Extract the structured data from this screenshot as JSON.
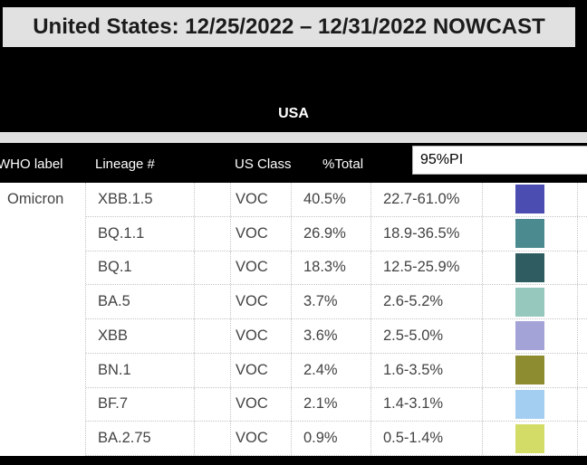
{
  "banner": {
    "title": "United States: 12/25/2022 – 12/31/2022 NOWCAST",
    "region": "USA"
  },
  "header": {
    "who": "WHO label",
    "lineage": "Lineage #",
    "us_class": "US Class",
    "pct_total": "%Total",
    "pi_box": "95%PI"
  },
  "table": {
    "who_label": "Omicron",
    "rows": [
      {
        "lineage": "XBB.1.5",
        "us_class": "VOC",
        "pct_total": "40.5%",
        "pi95": "22.7-61.0%",
        "color": "#4c4db0"
      },
      {
        "lineage": "BQ.1.1",
        "us_class": "VOC",
        "pct_total": "26.9%",
        "pi95": "18.9-36.5%",
        "color": "#4b8b8f"
      },
      {
        "lineage": "BQ.1",
        "us_class": "VOC",
        "pct_total": "18.3%",
        "pi95": "12.5-25.9%",
        "color": "#2e5c60"
      },
      {
        "lineage": "BA.5",
        "us_class": "VOC",
        "pct_total": "3.7%",
        "pi95": "2.6-5.2%",
        "color": "#96c8bd"
      },
      {
        "lineage": "XBB",
        "us_class": "VOC",
        "pct_total": "3.6%",
        "pi95": "2.5-5.0%",
        "color": "#a3a3d7"
      },
      {
        "lineage": "BN.1",
        "us_class": "VOC",
        "pct_total": "2.4%",
        "pi95": "1.6-3.5%",
        "color": "#8e8c31"
      },
      {
        "lineage": "BF.7",
        "us_class": "VOC",
        "pct_total": "2.1%",
        "pi95": "1.4-3.1%",
        "color": "#a3cef2"
      },
      {
        "lineage": "BA.2.75",
        "us_class": "VOC",
        "pct_total": "0.9%",
        "pi95": "0.5-1.4%",
        "color": "#d2dc67"
      }
    ]
  }
}
